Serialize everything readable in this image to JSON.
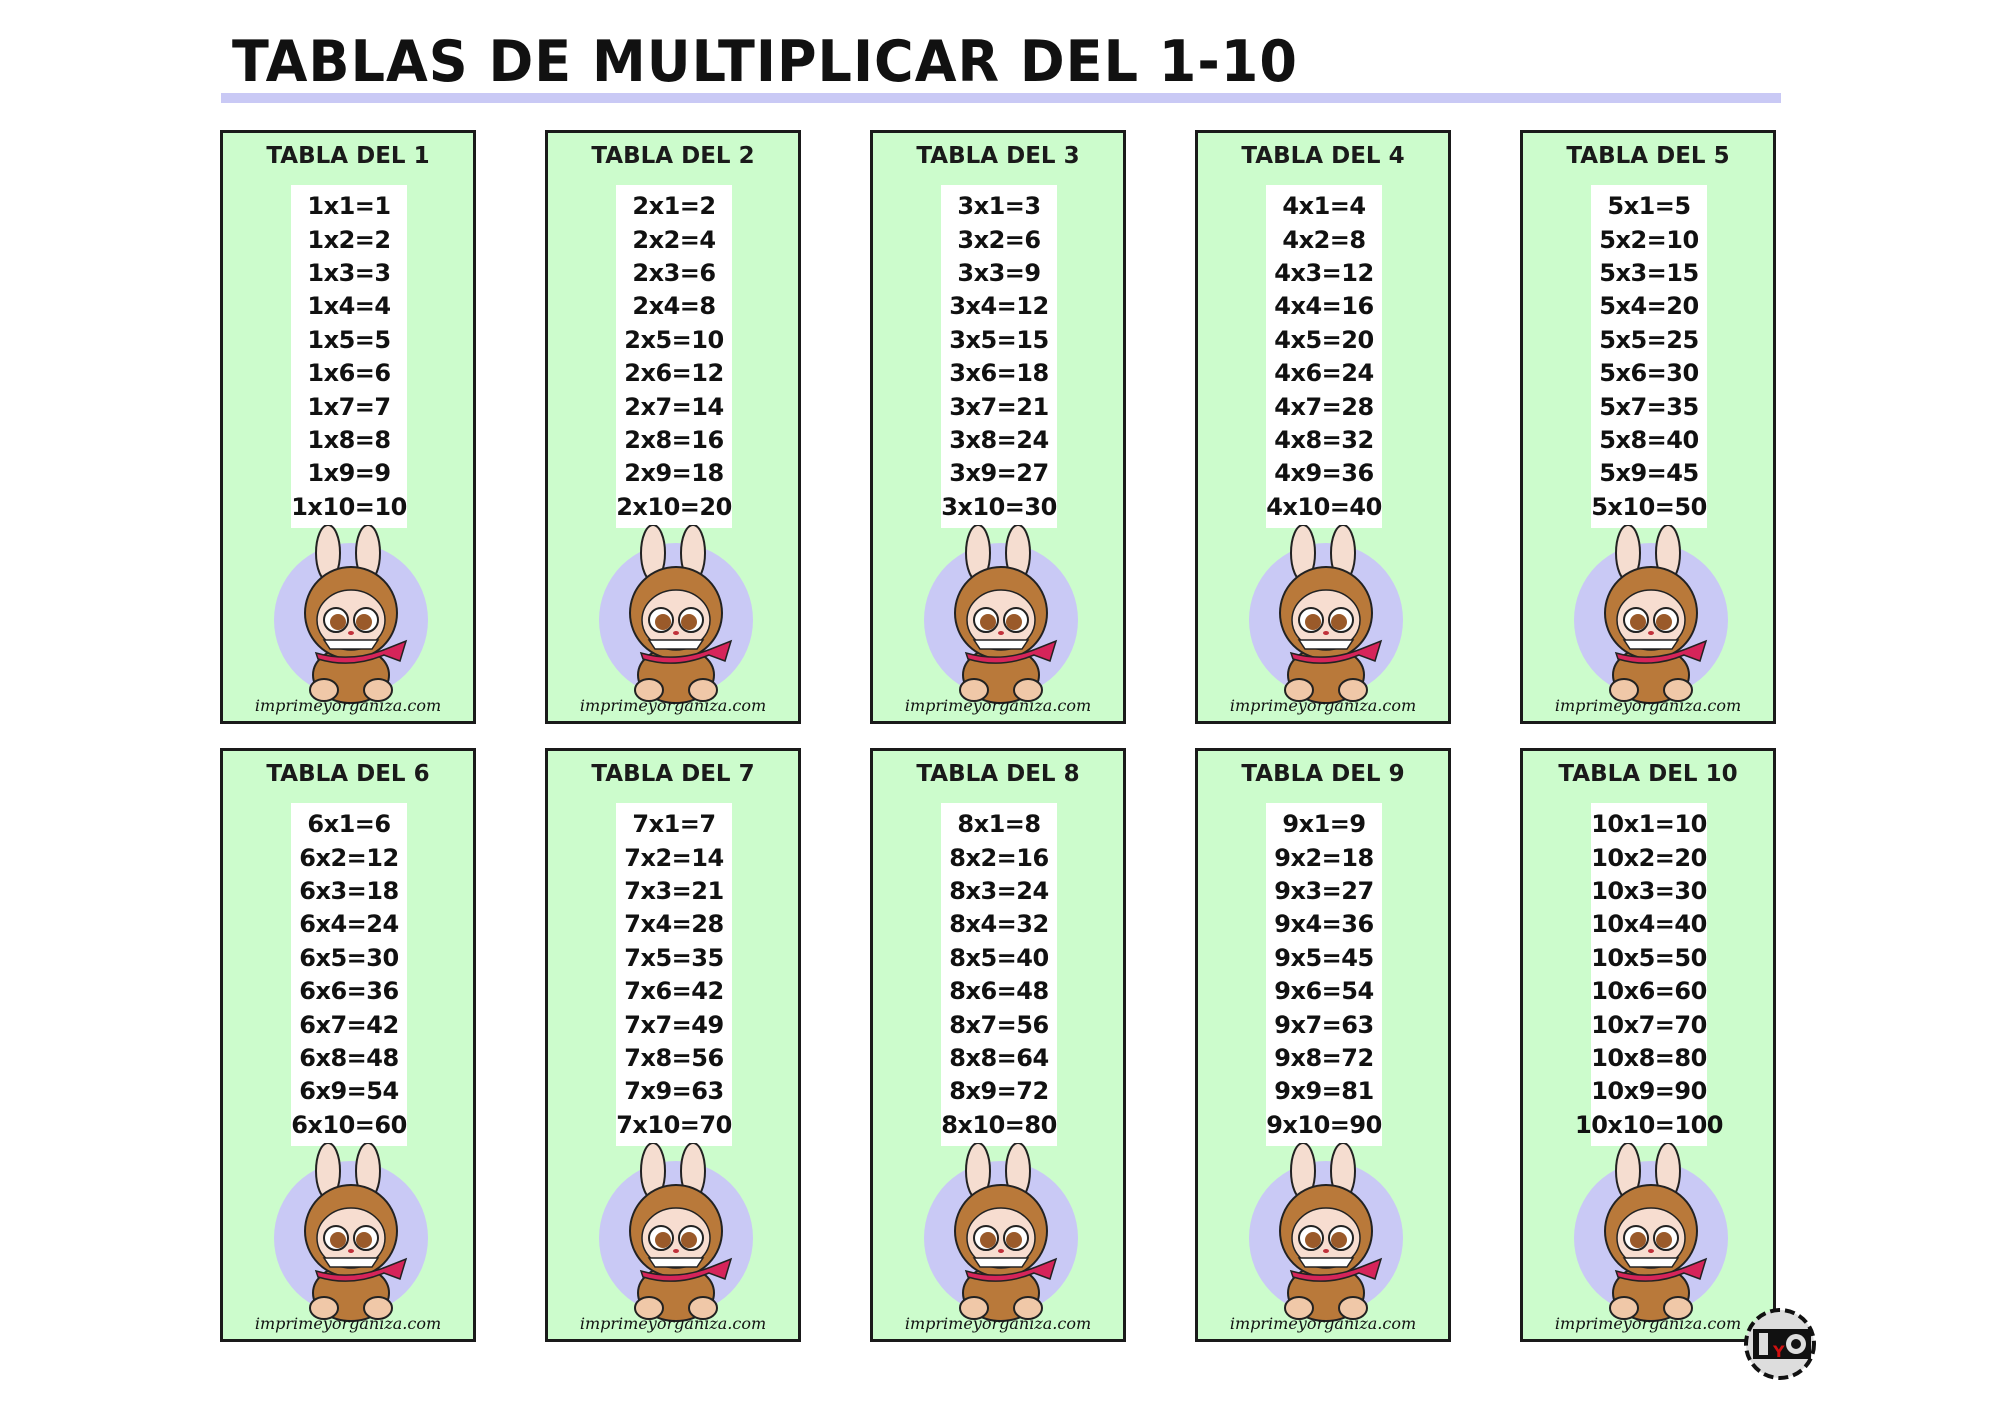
{
  "title": "TABLAS DE MULTIPLICAR DEL 1-10",
  "site": "imprimeyorganiza.com",
  "logo": "IYO",
  "colors": {
    "card_bg": "#ccfccc",
    "circle": "#c9c9f5",
    "rule": "#c9c9f5",
    "scarf": "#d6245a",
    "fur": "#b9793a"
  },
  "tables": [
    {
      "title": "TABLA DEL 1",
      "rows": [
        "1x1=1",
        "1x2=2",
        "1x3=3",
        "1x4=4",
        "1x5=5",
        "1x6=6",
        "1x7=7",
        "1x8=8",
        "1x9=9",
        "1x10=10"
      ]
    },
    {
      "title": "TABLA DEL 2",
      "rows": [
        "2x1=2",
        "2x2=4",
        "2x3=6",
        "2x4=8",
        "2x5=10",
        "2x6=12",
        "2x7=14",
        "2x8=16",
        "2x9=18",
        "2x10=20"
      ]
    },
    {
      "title": "TABLA DEL 3",
      "rows": [
        "3x1=3",
        "3x2=6",
        "3x3=9",
        "3x4=12",
        "3x5=15",
        "3x6=18",
        "3x7=21",
        "3x8=24",
        "3x9=27",
        "3x10=30"
      ]
    },
    {
      "title": "TABLA DEL 4",
      "rows": [
        "4x1=4",
        "4x2=8",
        "4x3=12",
        "4x4=16",
        "4x5=20",
        "4x6=24",
        "4x7=28",
        "4x8=32",
        "4x9=36",
        "4x10=40"
      ]
    },
    {
      "title": "TABLA DEL 5",
      "rows": [
        "5x1=5",
        "5x2=10",
        "5x3=15",
        "5x4=20",
        "5x5=25",
        "5x6=30",
        "5x7=35",
        "5x8=40",
        "5x9=45",
        "5x10=50"
      ]
    },
    {
      "title": "TABLA DEL 6",
      "rows": [
        "6x1=6",
        "6x2=12",
        "6x3=18",
        "6x4=24",
        "6x5=30",
        "6x6=36",
        "6x7=42",
        "6x8=48",
        "6x9=54",
        "6x10=60"
      ]
    },
    {
      "title": "TABLA DEL 7",
      "rows": [
        "7x1=7",
        "7x2=14",
        "7x3=21",
        "7x4=28",
        "7x5=35",
        "7x6=42",
        "7x7=49",
        "7x8=56",
        "7x9=63",
        "7x10=70"
      ]
    },
    {
      "title": "TABLA DEL 8",
      "rows": [
        "8x1=8",
        "8x2=16",
        "8x3=24",
        "8x4=32",
        "8x5=40",
        "8x6=48",
        "8x7=56",
        "8x8=64",
        "8x9=72",
        "8x10=80"
      ]
    },
    {
      "title": "TABLA DEL 9",
      "rows": [
        "9x1=9",
        "9x2=18",
        "9x3=27",
        "9x4=36",
        "9x5=45",
        "9x6=54",
        "9x7=63",
        "9x8=72",
        "9x9=81",
        "9x10=90"
      ]
    },
    {
      "title": "TABLA DEL 10",
      "rows": [
        "10x1=10",
        "10x2=20",
        "10x3=30",
        "10x4=40",
        "10x5=50",
        "10x6=60",
        "10x7=70",
        "10x8=80",
        "10x9=90",
        "10x10=100"
      ]
    }
  ]
}
